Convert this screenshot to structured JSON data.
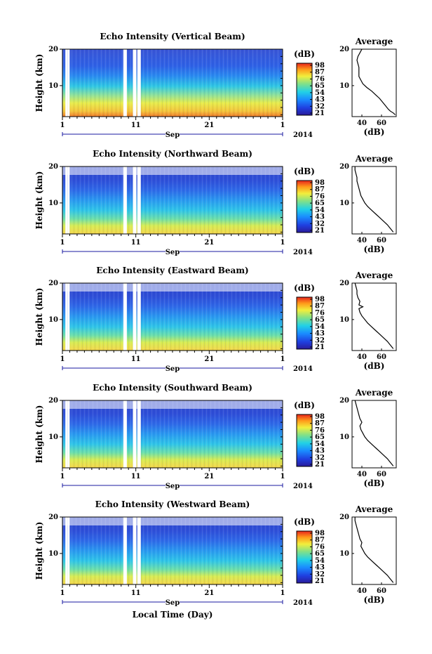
{
  "figure": {
    "x_axis_title": "Local Time (Day)",
    "month_label": "Sep",
    "year_label": "2014",
    "x_tick_labels": [
      "1",
      "11",
      "21",
      "1"
    ],
    "colorbar_unit": "(dB)",
    "colorbar_ticks": [
      "98",
      "87",
      "76",
      "65",
      "54",
      "43",
      "32",
      "21"
    ],
    "profile_title": "Average",
    "profile_xlabel": "(dB)",
    "profile_x_ticks": [
      "40",
      "60"
    ],
    "height_label": "Height (km)",
    "height_ticks": [
      "20",
      "10"
    ]
  },
  "chart_data": [
    {
      "type": "heatmap",
      "title": "Echo Intensity (Vertical Beam)",
      "xlabel": "",
      "ylabel": "Height (km)",
      "x_range": [
        "2014-09-01",
        "2014-10-01"
      ],
      "ylim": [
        1.5,
        20
      ],
      "zlim": [
        21,
        98
      ],
      "colorbar_unit": "dB",
      "data_gaps_day": [
        1.4,
        1.7,
        9.3,
        10.6,
        11.2
      ],
      "profile": {
        "title": "Average",
        "xlabel": "(dB)",
        "xlim": [
          30,
          75
        ],
        "points": [
          [
            74,
            2
          ],
          [
            72,
            2.5
          ],
          [
            69,
            3
          ],
          [
            67,
            3.5
          ],
          [
            64,
            4.5
          ],
          [
            61,
            5.5
          ],
          [
            58,
            6.5
          ],
          [
            54,
            7.5
          ],
          [
            50,
            8.5
          ],
          [
            45,
            9.5
          ],
          [
            41,
            10.5
          ],
          [
            39,
            11.5
          ],
          [
            37,
            12.5
          ],
          [
            37,
            14
          ],
          [
            37,
            15
          ],
          [
            36,
            16
          ],
          [
            35,
            17
          ],
          [
            36,
            18
          ],
          [
            38,
            19
          ],
          [
            40,
            20
          ]
        ]
      }
    },
    {
      "type": "heatmap",
      "title": "Echo Intensity (Northward Beam)",
      "xlabel": "",
      "ylabel": "Height (km)",
      "x_range": [
        "2014-09-01",
        "2014-10-01"
      ],
      "ylim": [
        1.5,
        20
      ],
      "zlim": [
        21,
        98
      ],
      "colorbar_unit": "dB",
      "data_gaps_day": [
        1.4,
        1.7,
        9.3,
        10.6,
        11.2
      ],
      "profile": {
        "title": "Average",
        "xlabel": "(dB)",
        "xlim": [
          30,
          75
        ],
        "points": [
          [
            72,
            2
          ],
          [
            69,
            3
          ],
          [
            66,
            4
          ],
          [
            62,
            5
          ],
          [
            58,
            6
          ],
          [
            54,
            7
          ],
          [
            50,
            8
          ],
          [
            46,
            9
          ],
          [
            43,
            10
          ],
          [
            41,
            11
          ],
          [
            39,
            12
          ],
          [
            38,
            13
          ],
          [
            37,
            14
          ],
          [
            36,
            15
          ],
          [
            35,
            16
          ],
          [
            35,
            17
          ],
          [
            34,
            18
          ],
          [
            33,
            19
          ],
          [
            33,
            20
          ]
        ]
      }
    },
    {
      "type": "heatmap",
      "title": "Echo Intensity (Eastward Beam)",
      "xlabel": "",
      "ylabel": "Height (km)",
      "x_range": [
        "2014-09-01",
        "2014-10-01"
      ],
      "ylim": [
        1.5,
        20
      ],
      "zlim": [
        21,
        98
      ],
      "colorbar_unit": "dB",
      "data_gaps_day": [
        1.4,
        1.7,
        9.3,
        10.6,
        11.2
      ],
      "profile": {
        "title": "Average",
        "xlabel": "(dB)",
        "xlim": [
          30,
          75
        ],
        "points": [
          [
            72,
            2
          ],
          [
            69,
            3
          ],
          [
            66,
            4
          ],
          [
            62,
            5
          ],
          [
            58,
            6
          ],
          [
            54,
            7
          ],
          [
            50,
            8
          ],
          [
            46,
            9
          ],
          [
            43,
            10
          ],
          [
            40,
            11
          ],
          [
            38,
            12
          ],
          [
            37,
            13
          ],
          [
            41,
            13.5
          ],
          [
            37,
            14
          ],
          [
            38,
            15
          ],
          [
            36,
            16
          ],
          [
            35,
            17
          ],
          [
            35,
            18
          ],
          [
            34,
            19
          ],
          [
            33,
            20
          ]
        ]
      }
    },
    {
      "type": "heatmap",
      "title": "Echo Intensity (Southward Beam)",
      "xlabel": "",
      "ylabel": "Height (km)",
      "x_range": [
        "2014-09-01",
        "2014-10-01"
      ],
      "ylim": [
        1.5,
        20
      ],
      "zlim": [
        21,
        98
      ],
      "colorbar_unit": "dB",
      "data_gaps_day": [
        1.4,
        1.7,
        9.3,
        10.6,
        11.2
      ],
      "profile": {
        "title": "Average",
        "xlabel": "(dB)",
        "xlim": [
          30,
          75
        ],
        "points": [
          [
            72,
            2
          ],
          [
            69,
            3
          ],
          [
            66,
            4
          ],
          [
            62,
            5
          ],
          [
            58,
            6
          ],
          [
            54,
            7
          ],
          [
            50,
            8
          ],
          [
            46,
            9
          ],
          [
            43,
            10
          ],
          [
            41,
            11
          ],
          [
            39,
            12
          ],
          [
            38,
            13
          ],
          [
            40,
            14
          ],
          [
            38,
            15
          ],
          [
            37,
            16
          ],
          [
            36,
            17
          ],
          [
            35,
            18
          ],
          [
            34,
            19
          ],
          [
            33,
            20
          ]
        ]
      }
    },
    {
      "type": "heatmap",
      "title": "Echo Intensity (Westward Beam)",
      "xlabel": "Local Time (Day)",
      "ylabel": "Height (km)",
      "x_range": [
        "2014-09-01",
        "2014-10-01"
      ],
      "ylim": [
        1.5,
        20
      ],
      "zlim": [
        21,
        98
      ],
      "colorbar_unit": "dB",
      "data_gaps_day": [
        1.4,
        1.7,
        9.3,
        10.6,
        11.2
      ],
      "profile": {
        "title": "Average",
        "xlabel": "(dB)",
        "xlim": [
          30,
          75
        ],
        "points": [
          [
            72,
            2
          ],
          [
            69,
            3
          ],
          [
            66,
            4
          ],
          [
            62,
            5
          ],
          [
            58,
            6
          ],
          [
            54,
            7
          ],
          [
            50,
            8
          ],
          [
            46,
            9
          ],
          [
            43,
            10
          ],
          [
            41,
            11
          ],
          [
            39,
            12
          ],
          [
            40,
            13
          ],
          [
            38,
            14
          ],
          [
            37,
            15
          ],
          [
            36,
            16
          ],
          [
            35,
            17
          ],
          [
            34,
            18
          ],
          [
            33,
            19
          ],
          [
            33,
            20
          ]
        ]
      }
    }
  ]
}
